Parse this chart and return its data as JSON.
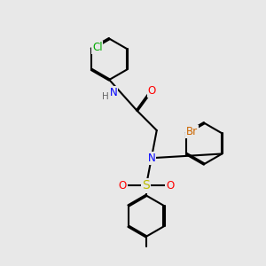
{
  "bg_color": "#e8e8e8",
  "bond_color": "#000000",
  "bond_width": 1.5,
  "dbo": 0.025,
  "atom_colors": {
    "N": "#0000ff",
    "O": "#ff0000",
    "S": "#bbbb00",
    "Cl": "#00aa00",
    "Br": "#cc6600",
    "H": "#666666",
    "C": "#000000"
  },
  "fs": 8.5,
  "fs_small": 7.5
}
